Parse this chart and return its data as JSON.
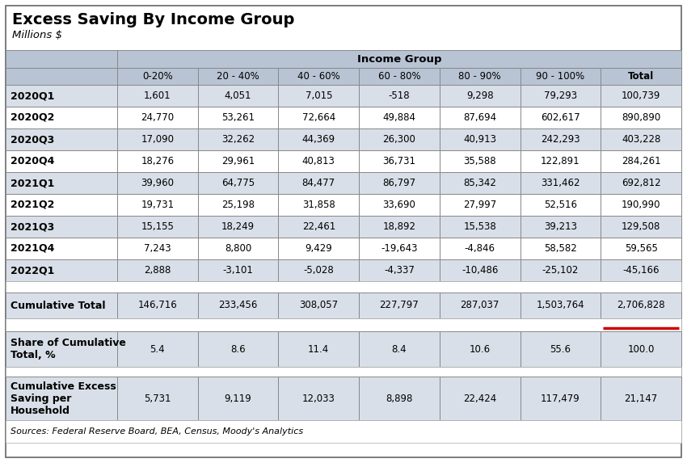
{
  "title": "Excess Saving By Income Group",
  "subtitle": "Millions $",
  "income_group_header": "Income Group",
  "col_headers": [
    "0-20%",
    "20 - 40%",
    "40 - 60%",
    "60 - 80%",
    "80 - 90%",
    "90 - 100%",
    "Total"
  ],
  "row_labels": [
    "2020Q1",
    "2020Q2",
    "2020Q3",
    "2020Q4",
    "2021Q1",
    "2021Q2",
    "2021Q3",
    "2021Q4",
    "2022Q1"
  ],
  "data": [
    [
      "1,601",
      "4,051",
      "7,015",
      "-518",
      "9,298",
      "79,293",
      "100,739"
    ],
    [
      "24,770",
      "53,261",
      "72,664",
      "49,884",
      "87,694",
      "602,617",
      "890,890"
    ],
    [
      "17,090",
      "32,262",
      "44,369",
      "26,300",
      "40,913",
      "242,293",
      "403,228"
    ],
    [
      "18,276",
      "29,961",
      "40,813",
      "36,731",
      "35,588",
      "122,891",
      "284,261"
    ],
    [
      "39,960",
      "64,775",
      "84,477",
      "86,797",
      "85,342",
      "331,462",
      "692,812"
    ],
    [
      "19,731",
      "25,198",
      "31,858",
      "33,690",
      "27,997",
      "52,516",
      "190,990"
    ],
    [
      "15,155",
      "18,249",
      "22,461",
      "18,892",
      "15,538",
      "39,213",
      "129,508"
    ],
    [
      "7,243",
      "8,800",
      "9,429",
      "-19,643",
      "-4,846",
      "58,582",
      "59,565"
    ],
    [
      "2,888",
      "-3,101",
      "-5,028",
      "-4,337",
      "-10,486",
      "-25,102",
      "-45,166"
    ]
  ],
  "cumulative_total_label": "Cumulative Total",
  "cumulative_total": [
    "146,716",
    "233,456",
    "308,057",
    "227,797",
    "287,037",
    "1,503,764",
    "2,706,828"
  ],
  "share_label": "Share of Cumulative\nTotal, %",
  "share": [
    "5.4",
    "8.6",
    "11.4",
    "8.4",
    "10.6",
    "55.6",
    "100.0"
  ],
  "per_household_label": "Cumulative Excess\nSaving per\nHousehold",
  "per_household": [
    "5,731",
    "9,119",
    "12,033",
    "8,898",
    "22,424",
    "117,479",
    "21,147"
  ],
  "sources": "Sources: Federal Reserve Board, BEA, Census, Moody's Analytics",
  "bg_color": "#ffffff",
  "header_bg": "#b8c4d4",
  "row_alt_bg": "#d8dfe8",
  "row_white_bg": "#ffffff",
  "red_underline_color": "#cc0000"
}
